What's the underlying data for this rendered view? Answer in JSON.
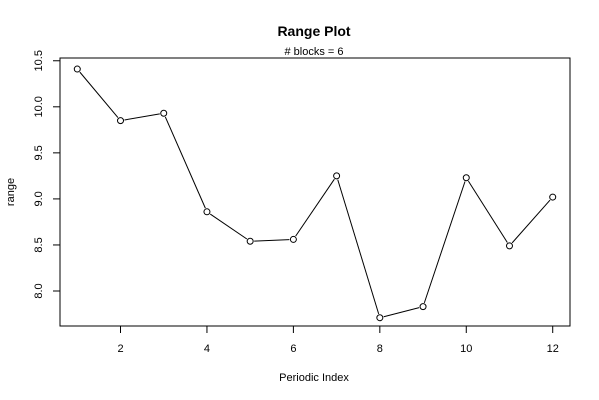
{
  "chart_data": {
    "type": "line",
    "title": "Range Plot",
    "subtitle": "# blocks =  6",
    "xlabel": "Periodic Index",
    "ylabel": "range",
    "x": [
      1,
      2,
      3,
      4,
      5,
      6,
      7,
      8,
      9,
      10,
      11,
      12
    ],
    "series": [
      {
        "values": [
          10.41,
          9.85,
          9.93,
          8.86,
          8.54,
          8.56,
          9.25,
          7.71,
          7.83,
          9.23,
          8.49,
          9.02
        ]
      }
    ],
    "xlim": [
      0.6,
      12.4
    ],
    "ylim": [
      7.62,
      10.53
    ],
    "xticks": [
      2,
      4,
      6,
      8,
      10,
      12
    ],
    "yticks": [
      8.0,
      8.5,
      9.0,
      9.5,
      10.0,
      10.5
    ],
    "xtick_labels": [
      "2",
      "4",
      "6",
      "8",
      "10",
      "12"
    ],
    "ytick_labels": [
      "8.0",
      "8.5",
      "9.0",
      "9.5",
      "10.0",
      "10.5"
    ],
    "grid": false,
    "markers": "open-circle",
    "colors": {
      "line": "#000000",
      "marker_fill": "#ffffff",
      "frame": "#000000"
    }
  }
}
